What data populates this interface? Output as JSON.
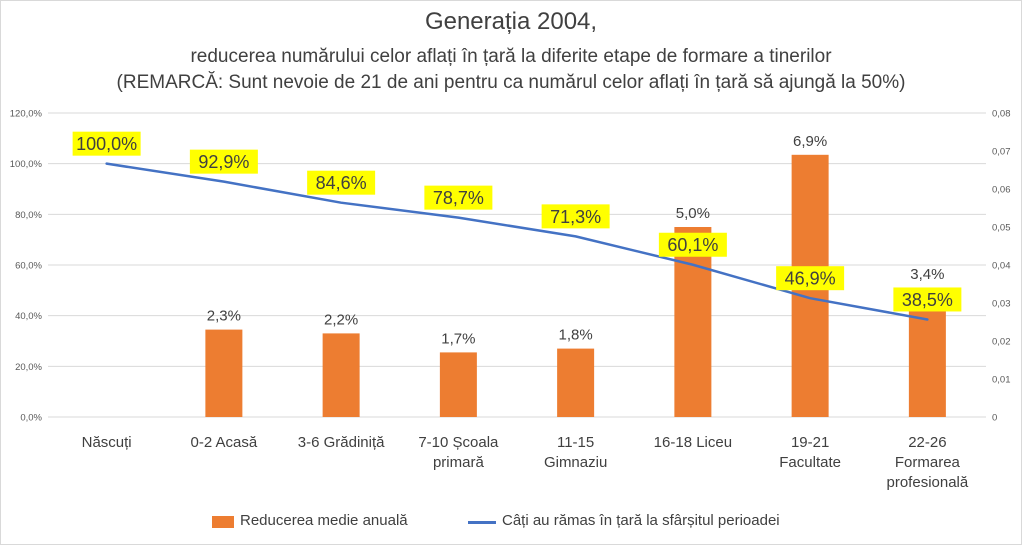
{
  "chart_data": {
    "type": "bar+line",
    "title": "Generația 2004,",
    "subtitle": "reducerea numărului celor aflați în țară la diferite etape de formare a tinerilor",
    "note": "(REMARCĂ: Sunt nevoie de 21 de ani pentru ca numărul celor aflați în țară să ajungă la 50%)",
    "categories": [
      [
        "Născuți"
      ],
      [
        "0-2 Acasă"
      ],
      [
        "3-6 Grădiniță"
      ],
      [
        "7-10 Școala",
        "primară"
      ],
      [
        "11-15",
        "Gimnaziu"
      ],
      [
        "16-18 Liceu"
      ],
      [
        "19-21",
        "Facultate"
      ],
      [
        "22-26",
        "Formarea",
        "profesională"
      ]
    ],
    "left_axis": {
      "ylim": [
        0,
        120
      ],
      "ticks": [
        "0,0%",
        "20,0%",
        "40,0%",
        "60,0%",
        "80,0%",
        "100,0%",
        "120,0%"
      ]
    },
    "right_axis": {
      "ylim": [
        0,
        0.08
      ],
      "ticks": [
        "0",
        "0,01",
        "0,02",
        "0,03",
        "0,04",
        "0,05",
        "0,06",
        "0,07",
        "0,08"
      ]
    },
    "series": [
      {
        "name": "Reducerea medie anuală",
        "type": "bar",
        "axis": "right",
        "color": "#ED7D31",
        "values": [
          null,
          0.023,
          0.022,
          0.017,
          0.018,
          0.05,
          0.069,
          0.034
        ],
        "labels": [
          "",
          "2,3%",
          "2,2%",
          "1,7%",
          "1,8%",
          "5,0%",
          "6,9%",
          "3,4%"
        ]
      },
      {
        "name": "Câți au rămas în țară la sfârșitul perioadei",
        "type": "line",
        "axis": "left",
        "color": "#4472C4",
        "values": [
          100.0,
          92.9,
          84.6,
          78.7,
          71.3,
          60.1,
          46.9,
          38.5
        ],
        "labels": [
          "100,0%",
          "92,9%",
          "84,6%",
          "78,7%",
          "71,3%",
          "60,1%",
          "46,9%",
          "38,5%"
        ],
        "label_highlight": "#FFFF00"
      }
    ],
    "grid": true,
    "legend": "bottom"
  }
}
